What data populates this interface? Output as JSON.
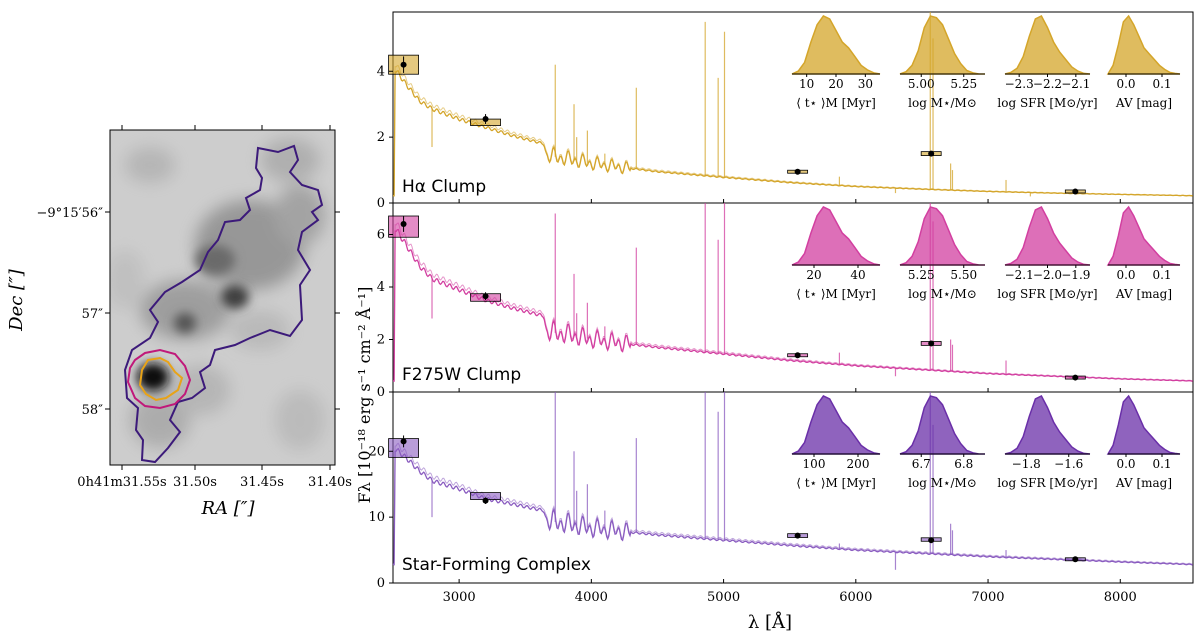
{
  "chart_data": [
    {
      "type": "image",
      "title": "",
      "xlabel": "RA [″]",
      "ylabel": "Dec [″]",
      "x_ticks": [
        "0h41m31.55s",
        "31.50s",
        "31.45s",
        "31.40s"
      ],
      "y_ticks": [
        "−9°15′56″",
        "57″",
        "58″"
      ],
      "contours": [
        {
          "name": "Star-Forming Complex",
          "color": "#3c1a7a"
        },
        {
          "name": "F275W Clump",
          "color": "#c0197a"
        },
        {
          "name": "Hα Clump",
          "color": "#e8a317"
        }
      ]
    },
    {
      "type": "line",
      "xlabel": "λ [Å]",
      "ylabel": "Fλ [10⁻¹⁸ erg s⁻¹ cm⁻² Å⁻¹]",
      "x_range": [
        2500,
        8550
      ],
      "x_ticks": [
        3000,
        4000,
        5000,
        6000,
        7000,
        8000
      ],
      "panels": [
        {
          "label": "Hα Clump",
          "color": "#d4a52a",
          "ylim": [
            0,
            5.8
          ],
          "y_ticks": [
            0,
            2,
            4
          ],
          "continuum": [
            [
              2510,
              4.1
            ],
            [
              2600,
              3.6
            ],
            [
              2700,
              3.1
            ],
            [
              2800,
              2.85
            ],
            [
              3000,
              2.55
            ],
            [
              3200,
              2.3
            ],
            [
              3400,
              2.05
            ],
            [
              3640,
              1.8
            ],
            [
              3660,
              1.45
            ],
            [
              3800,
              1.35
            ],
            [
              4000,
              1.2
            ],
            [
              4500,
              0.95
            ],
            [
              5000,
              0.78
            ],
            [
              5500,
              0.62
            ],
            [
              6000,
              0.5
            ],
            [
              6500,
              0.42
            ],
            [
              7000,
              0.35
            ],
            [
              7500,
              0.3
            ],
            [
              8000,
              0.26
            ],
            [
              8550,
              0.22
            ]
          ],
          "emission_lines": [
            [
              2795,
              1.7
            ],
            [
              3727,
              4.2
            ],
            [
              3869,
              3.0
            ],
            [
              3889,
              2.0
            ],
            [
              3970,
              2.2
            ],
            [
              4102,
              1.5
            ],
            [
              4340,
              3.5
            ],
            [
              4861,
              5.5
            ],
            [
              4959,
              3.8
            ],
            [
              5007,
              5.2
            ],
            [
              5876,
              0.8
            ],
            [
              6300,
              0.3
            ],
            [
              6563,
              5.8
            ],
            [
              6584,
              5.0
            ],
            [
              6717,
              1.2
            ],
            [
              6731,
              1.0
            ],
            [
              7136,
              0.7
            ],
            [
              7320,
              0.2
            ]
          ],
          "photometry": [
            {
              "x": 2580,
              "y": 4.2,
              "model": 4.2,
              "err": 0.25
            },
            {
              "x": 3200,
              "y": 2.55,
              "model": 2.45,
              "err": 0.15
            },
            {
              "x": 5560,
              "y": 0.95,
              "model": 0.95,
              "err": 0.05
            },
            {
              "x": 6570,
              "y": 1.5,
              "model": 1.5,
              "err": 0.08
            },
            {
              "x": 7660,
              "y": 0.35,
              "model": 0.35,
              "err": 0.03
            }
          ],
          "posteriors": [
            {
              "xlabel": "⟨ t⋆ ⟩M [Myr]",
              "ticks": [
                "10",
                "20",
                "30"
              ],
              "color": "#d4a52a"
            },
            {
              "xlabel": "log M⋆/M⊙",
              "ticks": [
                "5.00",
                "5.25"
              ],
              "color": "#d4a52a"
            },
            {
              "xlabel": "log SFR [M⊙/yr]",
              "ticks": [
                "−2.3",
                "−2.2",
                "−2.1"
              ],
              "color": "#d4a52a"
            },
            {
              "xlabel": "AV [mag]",
              "ticks": [
                "0.0",
                "0.1"
              ],
              "color": "#d4a52a"
            }
          ]
        },
        {
          "label": "F275W Clump",
          "color": "#d23fa0",
          "ylim": [
            0,
            7.2
          ],
          "y_ticks": [
            0,
            2,
            4,
            6
          ],
          "continuum": [
            [
              2510,
              6.3
            ],
            [
              2600,
              5.6
            ],
            [
              2700,
              4.8
            ],
            [
              2800,
              4.3
            ],
            [
              3000,
              3.9
            ],
            [
              3200,
              3.5
            ],
            [
              3400,
              3.2
            ],
            [
              3640,
              2.9
            ],
            [
              3660,
              2.3
            ],
            [
              3800,
              2.2
            ],
            [
              4000,
              2.0
            ],
            [
              4500,
              1.7
            ],
            [
              5000,
              1.45
            ],
            [
              5500,
              1.2
            ],
            [
              6000,
              1.0
            ],
            [
              6500,
              0.85
            ],
            [
              7000,
              0.7
            ],
            [
              7500,
              0.6
            ],
            [
              8000,
              0.5
            ],
            [
              8550,
              0.42
            ]
          ],
          "emission_lines": [
            [
              2795,
              2.8
            ],
            [
              3727,
              6.8
            ],
            [
              3869,
              4.5
            ],
            [
              3889,
              3.0
            ],
            [
              3970,
              3.4
            ],
            [
              4102,
              2.5
            ],
            [
              4340,
              5.5
            ],
            [
              4861,
              7.2
            ],
            [
              4959,
              5.8
            ],
            [
              5007,
              7.2
            ],
            [
              5876,
              1.5
            ],
            [
              6300,
              0.6
            ],
            [
              6563,
              7.2
            ],
            [
              6584,
              6.5
            ],
            [
              6717,
              2.0
            ],
            [
              6731,
              1.8
            ],
            [
              7136,
              1.2
            ]
          ],
          "photometry": [
            {
              "x": 2580,
              "y": 6.4,
              "model": 6.3,
              "err": 0.3
            },
            {
              "x": 3200,
              "y": 3.65,
              "model": 3.6,
              "err": 0.15
            },
            {
              "x": 5560,
              "y": 1.4,
              "model": 1.4,
              "err": 0.06
            },
            {
              "x": 6570,
              "y": 1.85,
              "model": 1.85,
              "err": 0.08
            },
            {
              "x": 7660,
              "y": 0.55,
              "model": 0.55,
              "err": 0.04
            }
          ],
          "posteriors": [
            {
              "xlabel": "⟨ t⋆ ⟩M [Myr]",
              "ticks": [
                "20",
                "40"
              ],
              "color": "#d23fa0"
            },
            {
              "xlabel": "log M⋆/M⊙",
              "ticks": [
                "5.25",
                "5.50"
              ],
              "color": "#d23fa0"
            },
            {
              "xlabel": "log SFR [M⊙/yr]",
              "ticks": [
                "−2.1",
                "−2.0",
                "−1.9"
              ],
              "color": "#d23fa0"
            },
            {
              "xlabel": "AV [mag]",
              "ticks": [
                "0.0",
                "0.1"
              ],
              "color": "#d23fa0"
            }
          ]
        },
        {
          "label": "Star-Forming Complex",
          "color": "#8a5cc0",
          "ylim": [
            0,
            29
          ],
          "y_ticks": [
            0,
            10,
            20
          ],
          "continuum": [
            [
              2510,
              20.5
            ],
            [
              2600,
              19.0
            ],
            [
              2700,
              17.0
            ],
            [
              2800,
              15.5
            ],
            [
              3000,
              14.3
            ],
            [
              3200,
              12.8
            ],
            [
              3400,
              12.0
            ],
            [
              3640,
              11.0
            ],
            [
              3660,
              9.5
            ],
            [
              3800,
              9.0
            ],
            [
              4000,
              8.3
            ],
            [
              4500,
              7.3
            ],
            [
              5000,
              6.5
            ],
            [
              5500,
              5.7
            ],
            [
              6000,
              5.0
            ],
            [
              6500,
              4.5
            ],
            [
              7000,
              4.0
            ],
            [
              7500,
              3.6
            ],
            [
              8000,
              3.2
            ],
            [
              8550,
              2.8
            ]
          ],
          "emission_lines": [
            [
              2795,
              10.0
            ],
            [
              3727,
              29.0
            ],
            [
              3869,
              20.0
            ],
            [
              3889,
              14.0
            ],
            [
              3970,
              15.0
            ],
            [
              4102,
              11.0
            ],
            [
              4340,
              22.0
            ],
            [
              4861,
              29.0
            ],
            [
              4959,
              26.0
            ],
            [
              5007,
              29.0
            ],
            [
              5876,
              6.0
            ],
            [
              6300,
              2.0
            ],
            [
              6563,
              29.0
            ],
            [
              6584,
              24.0
            ],
            [
              6717,
              9.0
            ],
            [
              6731,
              8.0
            ],
            [
              7136,
              5.0
            ]
          ],
          "photometry": [
            {
              "x": 2580,
              "y": 21.5,
              "model": 20.5,
              "err": 0.9
            },
            {
              "x": 3200,
              "y": 12.5,
              "model": 13.2,
              "err": 0.5
            },
            {
              "x": 5560,
              "y": 7.2,
              "model": 7.2,
              "err": 0.3
            },
            {
              "x": 6570,
              "y": 6.5,
              "model": 6.6,
              "err": 0.3
            },
            {
              "x": 7660,
              "y": 3.6,
              "model": 3.6,
              "err": 0.2
            }
          ],
          "posteriors": [
            {
              "xlabel": "⟨ t⋆ ⟩M [Myr]",
              "ticks": [
                "100",
                "200"
              ],
              "color": "#6a2fa8"
            },
            {
              "xlabel": "log M⋆/M⊙",
              "ticks": [
                "6.7",
                "6.8"
              ],
              "color": "#6a2fa8"
            },
            {
              "xlabel": "log SFR [M⊙/yr]",
              "ticks": [
                "−1.8",
                "−1.6"
              ],
              "color": "#6a2fa8"
            },
            {
              "xlabel": "AV [mag]",
              "ticks": [
                "0.0",
                "0.1"
              ],
              "color": "#6a2fa8"
            }
          ]
        }
      ]
    }
  ]
}
